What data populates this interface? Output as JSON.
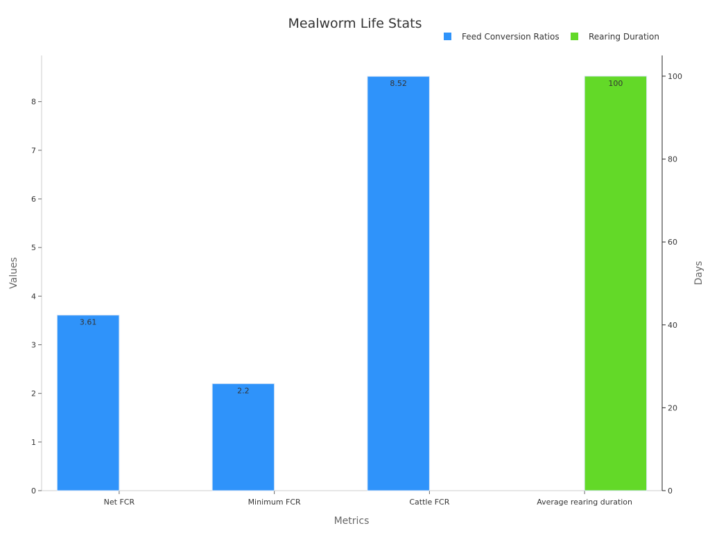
{
  "chart_data": {
    "type": "bar",
    "title": "Mealworm Life Stats",
    "xlabel": "Metrics",
    "ylabel": "Values",
    "y2label": "Days",
    "categories": [
      "Net FCR",
      "Minimum FCR",
      "Cattle FCR",
      "Average rearing duration"
    ],
    "ylim": [
      0,
      8.95
    ],
    "y2lim": [
      0,
      105
    ],
    "yticks": [
      0,
      1,
      2,
      3,
      4,
      5,
      6,
      7,
      8
    ],
    "y2ticks": [
      0,
      20,
      40,
      60,
      80,
      100
    ],
    "grid": false,
    "legend_position": "top-right",
    "series": [
      {
        "name": "Feed Conversion Ratios",
        "axis": "left",
        "color": "#2f93fa",
        "values": [
          3.61,
          2.2,
          8.52,
          null
        ],
        "labels": [
          "3.61",
          "2.2",
          "8.52",
          ""
        ]
      },
      {
        "name": "Rearing Duration",
        "axis": "right",
        "color": "#63d928",
        "values": [
          null,
          null,
          null,
          100
        ],
        "labels": [
          "",
          "",
          "",
          "100"
        ]
      }
    ]
  }
}
